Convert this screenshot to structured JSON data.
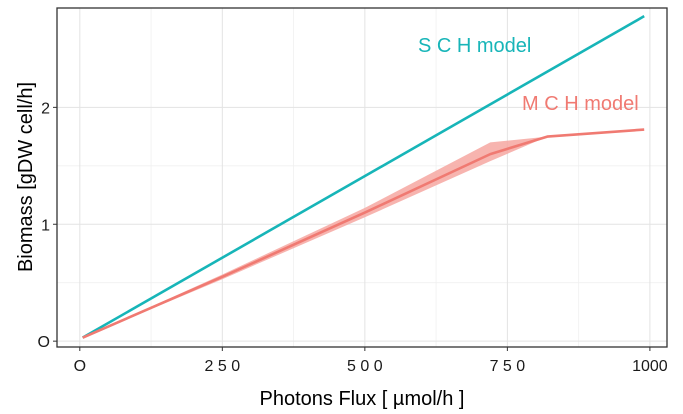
{
  "chart_data": {
    "type": "line",
    "title": "",
    "xlabel": "Photons Flux [ µmol/h ]",
    "ylabel": "Biomass [gDW cell/h]",
    "xlim": [
      -40,
      1030
    ],
    "ylim": [
      -0.05,
      2.85
    ],
    "x_ticks": [
      0,
      250,
      500,
      750,
      1000
    ],
    "x_tick_labels": [
      "O",
      "2 5 0",
      "5 0 0",
      "7 5 0",
      "1000"
    ],
    "y_ticks": [
      0,
      1,
      2
    ],
    "y_tick_labels": [
      "O",
      "1",
      "2"
    ],
    "grid": true,
    "legend": "none",
    "series": [
      {
        "name": "S C H model",
        "color": "#17b5b8",
        "x": [
          5,
          990
        ],
        "y": [
          0.03,
          2.78
        ]
      },
      {
        "name": "M C H model",
        "color": "#f07a72",
        "band_color": "#f6a7a1",
        "x": [
          5,
          250,
          500,
          720,
          820,
          990
        ],
        "y": [
          0.03,
          0.55,
          1.1,
          1.6,
          1.75,
          1.81
        ],
        "lower": [
          0.03,
          0.53,
          1.06,
          1.54,
          1.75,
          1.81
        ],
        "upper": [
          0.03,
          0.57,
          1.14,
          1.7,
          1.75,
          1.81
        ]
      }
    ],
    "annotations": [
      {
        "text": "S C H model",
        "color": "#17b5b8"
      },
      {
        "text": "M C H model",
        "color": "#f07a72"
      }
    ]
  }
}
